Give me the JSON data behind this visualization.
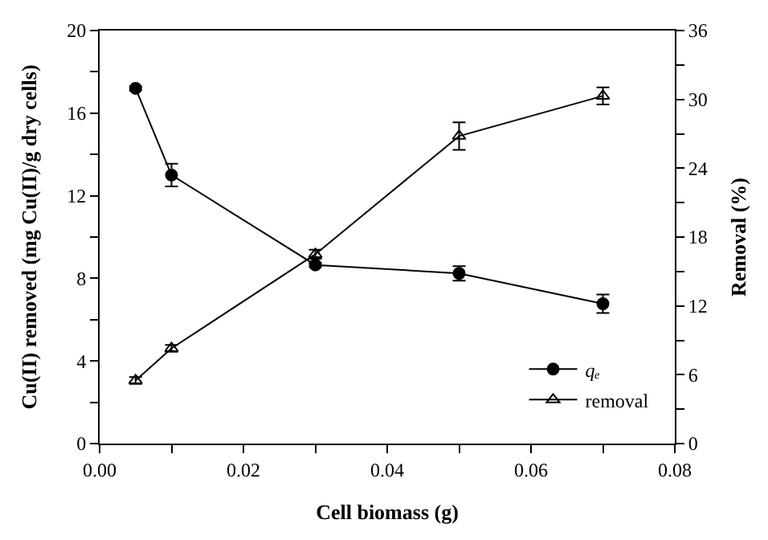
{
  "chart_data": {
    "type": "line",
    "xlabel": "Cell biomass (g)",
    "ylabel": "Cu(II) removed (mg Cu(II)/g dry cells)",
    "y2label": "Removal (%)",
    "x": [
      0.005,
      0.01,
      0.03,
      0.05,
      0.07
    ],
    "series": [
      {
        "name": "qₑ",
        "color": "#000000",
        "marker": "circle",
        "values": [
          17.2,
          13.0,
          8.65,
          8.24,
          6.77
        ],
        "errors": [
          0.1,
          0.55,
          0.1,
          0.35,
          0.45
        ]
      },
      {
        "name": "removal",
        "color": "#000000",
        "marker": "triangle",
        "axis": "y2",
        "values": [
          5.5,
          8.3,
          16.5,
          26.8,
          30.3
        ],
        "errors": [
          0.3,
          0.3,
          0.4,
          1.2,
          0.75
        ]
      }
    ],
    "xlim": [
      0,
      0.08
    ],
    "xticks": [
      "0.00",
      {
        "value": 0.01,
        "label": null
      },
      {
        "value": 0.02,
        "label": "0.02"
      },
      {
        "value": 0.03,
        "label": null
      },
      {
        "value": 0.04,
        "label": "0.04"
      },
      {
        "value": 0.05,
        "label": null
      },
      {
        "value": 0.06,
        "label": "0.06"
      },
      {
        "value": 0.07,
        "label": null
      },
      {
        "value": 0.08,
        "label": "0.08"
      }
    ],
    "ylim": [
      0,
      20
    ],
    "yticks": [
      0,
      {
        "value": 2,
        "label": null
      },
      4,
      {
        "value": 6,
        "label": null
      },
      8,
      {
        "value": 10,
        "label": null
      },
      12,
      {
        "value": 14,
        "label": null
      },
      16,
      {
        "value": 18,
        "label": null
      },
      20
    ],
    "y2lim": [
      0,
      36
    ],
    "y2ticks": [
      0,
      {
        "value": 3,
        "label": null
      },
      6,
      {
        "value": 9,
        "label": null
      },
      12,
      {
        "value": 15,
        "label": null
      },
      18,
      {
        "value": 21,
        "label": null
      },
      24,
      {
        "value": 27,
        "label": null
      },
      30,
      {
        "value": 33,
        "label": null
      },
      36
    ],
    "legend": "bottom right",
    "line_style": "solid"
  }
}
